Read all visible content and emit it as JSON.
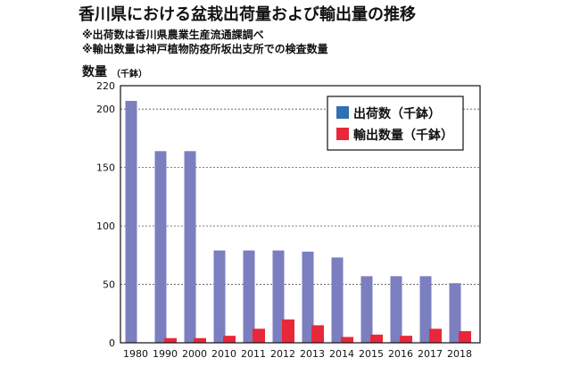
{
  "header": {
    "title": "香川県における盆栽出荷量および輸出量の推移",
    "note1": "※出荷数は香川県農業生産流通課調べ",
    "note2": "※輸出数量は神戸植物防疫所坂出支所での検査数量"
  },
  "chart_data": {
    "type": "bar",
    "title": "香川県における盆栽出荷量および輸出量の推移",
    "ylabel": "数量",
    "ylabel_unit": "（千鉢）",
    "xlabel": "",
    "ylim": [
      0,
      220
    ],
    "yticks": [
      0,
      50,
      100,
      150,
      200,
      220
    ],
    "grid": true,
    "legend_position": "top-right",
    "categories": [
      "1980",
      "1990",
      "2000",
      "2010",
      "2011",
      "2012",
      "2013",
      "2014",
      "2015",
      "2016",
      "2017",
      "2018"
    ],
    "series": [
      {
        "name": "出荷数（千鉢）",
        "color": "#7b7fbf",
        "legend_color": "#2f6fb4",
        "values": [
          207,
          164,
          164,
          79,
          79,
          79,
          78,
          73,
          57,
          57,
          57,
          51
        ]
      },
      {
        "name": "輸出数量（千鉢）",
        "color": "#e8283a",
        "legend_color": "#e8283a",
        "values": [
          0,
          4,
          4,
          6,
          12,
          20,
          15,
          5,
          7,
          6,
          12,
          10
        ]
      }
    ]
  }
}
